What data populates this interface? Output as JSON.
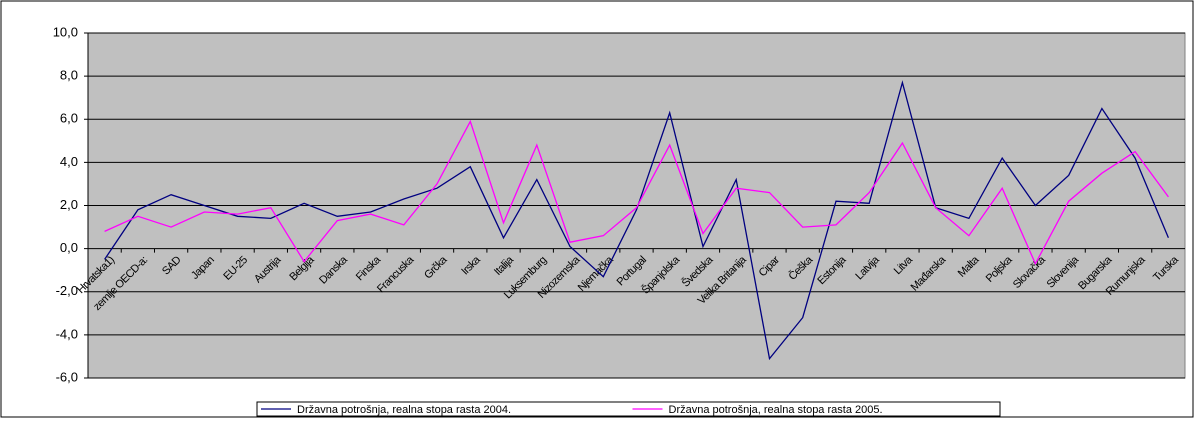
{
  "chart_data": {
    "type": "line",
    "categories": [
      "Hrvatska1)",
      "zemlje OECD-a:",
      "SAD",
      "Japan",
      "EU-25",
      "Austrija",
      "Belgija",
      "Danska",
      "Finska",
      "Francuska",
      "Grčka",
      "Irska",
      "Italija",
      "Luksemburg",
      "Nizozemska",
      "Njemačka",
      "Portugal",
      "Španjolska",
      "Švedska",
      "Velika Britanija",
      "Cipar",
      "Češka",
      "Estonija",
      "Latvija",
      "Litva",
      "Mađarska",
      "Malta",
      "Poljska",
      "Slovačka",
      "Slovenija",
      "Bugarska",
      "Rumunjska",
      "Turska"
    ],
    "series": [
      {
        "name": "Državna potrošnja, realna stopa rasta 2004.",
        "color": "#000080",
        "values": [
          -0.5,
          1.8,
          2.5,
          2.0,
          1.5,
          1.4,
          2.1,
          1.5,
          1.7,
          2.3,
          2.8,
          3.8,
          0.5,
          3.2,
          0.1,
          -1.3,
          1.8,
          6.3,
          0.1,
          3.2,
          -5.1,
          -3.2,
          2.2,
          2.1,
          7.7,
          1.9,
          1.4,
          4.2,
          2.0,
          3.4,
          6.5,
          4.2,
          0.5
        ]
      },
      {
        "name": "Državna potrošnja, realna stopa rasta 2005.",
        "color": "#ff00ff",
        "values": [
          0.8,
          1.5,
          1.0,
          1.7,
          1.6,
          1.9,
          -0.6,
          1.3,
          1.6,
          1.1,
          3.0,
          5.9,
          1.2,
          4.8,
          0.3,
          0.6,
          1.9,
          4.8,
          0.7,
          2.8,
          2.6,
          1.0,
          1.1,
          2.6,
          4.9,
          1.9,
          0.6,
          2.8,
          -0.7,
          2.2,
          3.5,
          4.5,
          2.4
        ]
      }
    ],
    "ylim": [
      -6,
      10
    ],
    "yticks": [
      {
        "value": -6,
        "label": "-6,0"
      },
      {
        "value": -4,
        "label": "-4,0"
      },
      {
        "value": -2,
        "label": "-2,0"
      },
      {
        "value": 0,
        "label": "0,0"
      },
      {
        "value": 2,
        "label": "2,0"
      },
      {
        "value": 4,
        "label": "4,0"
      },
      {
        "value": 6,
        "label": "6,0"
      },
      {
        "value": 8,
        "label": "8,0"
      },
      {
        "value": 10,
        "label": "10,0"
      }
    ],
    "grid": true,
    "legend": "bottom",
    "plot_background": "#c0c0c0"
  }
}
